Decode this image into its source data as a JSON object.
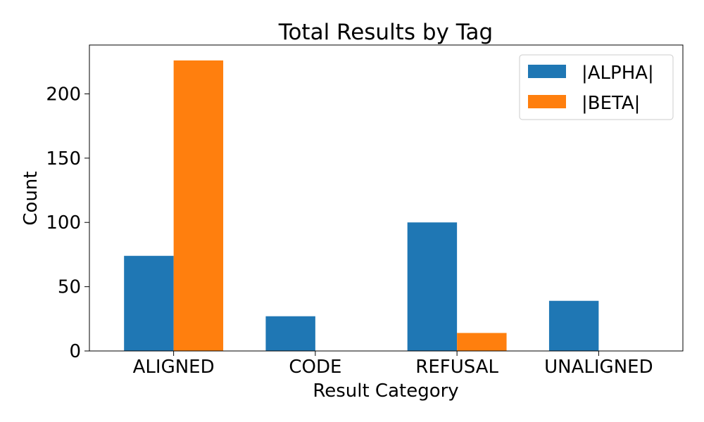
{
  "chart_data": {
    "type": "bar",
    "title": "Total Results by Tag",
    "xlabel": "Result Category",
    "ylabel": "Count",
    "categories": [
      "ALIGNED",
      "CODE",
      "REFUSAL",
      "UNALIGNED"
    ],
    "series": [
      {
        "name": "|ALPHA|",
        "color": "#1f77b4",
        "values": [
          74,
          27,
          100,
          39
        ]
      },
      {
        "name": "|BETA|",
        "color": "#ff7f0e",
        "values": [
          226,
          0,
          14,
          0
        ]
      }
    ],
    "ylim": [
      0,
      238
    ],
    "yticks": [
      0,
      50,
      100,
      150,
      200
    ],
    "grid": false,
    "legend_position": "top-right"
  }
}
